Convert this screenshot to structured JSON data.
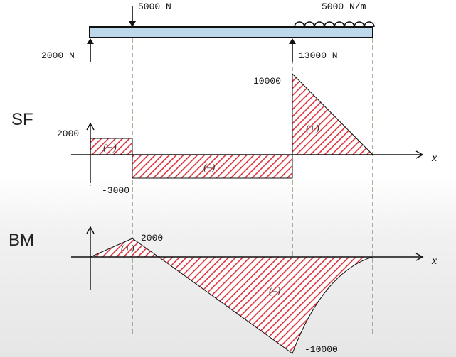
{
  "beam": {
    "point_load": "5000 N",
    "distributed_load": "5000 N/m",
    "left_reaction": "2000 N",
    "right_reaction": "13000 N"
  },
  "sf": {
    "section_label": "SF",
    "peak_label": "10000",
    "left_label": "2000",
    "neg_label": "-3000",
    "sign_left": "(+)",
    "sign_mid": "(–)",
    "sign_right": "(+)",
    "axis_label": "x"
  },
  "bm": {
    "section_label": "BM",
    "peak_label": "2000",
    "min_label": "-10000",
    "sign_left": "(+)",
    "sign_mid": "(–)",
    "axis_label": "x"
  },
  "colors": {
    "beam_fill": "#bcd8ea",
    "hatch": "#e0323c",
    "guide": "#5a6b3a"
  }
}
